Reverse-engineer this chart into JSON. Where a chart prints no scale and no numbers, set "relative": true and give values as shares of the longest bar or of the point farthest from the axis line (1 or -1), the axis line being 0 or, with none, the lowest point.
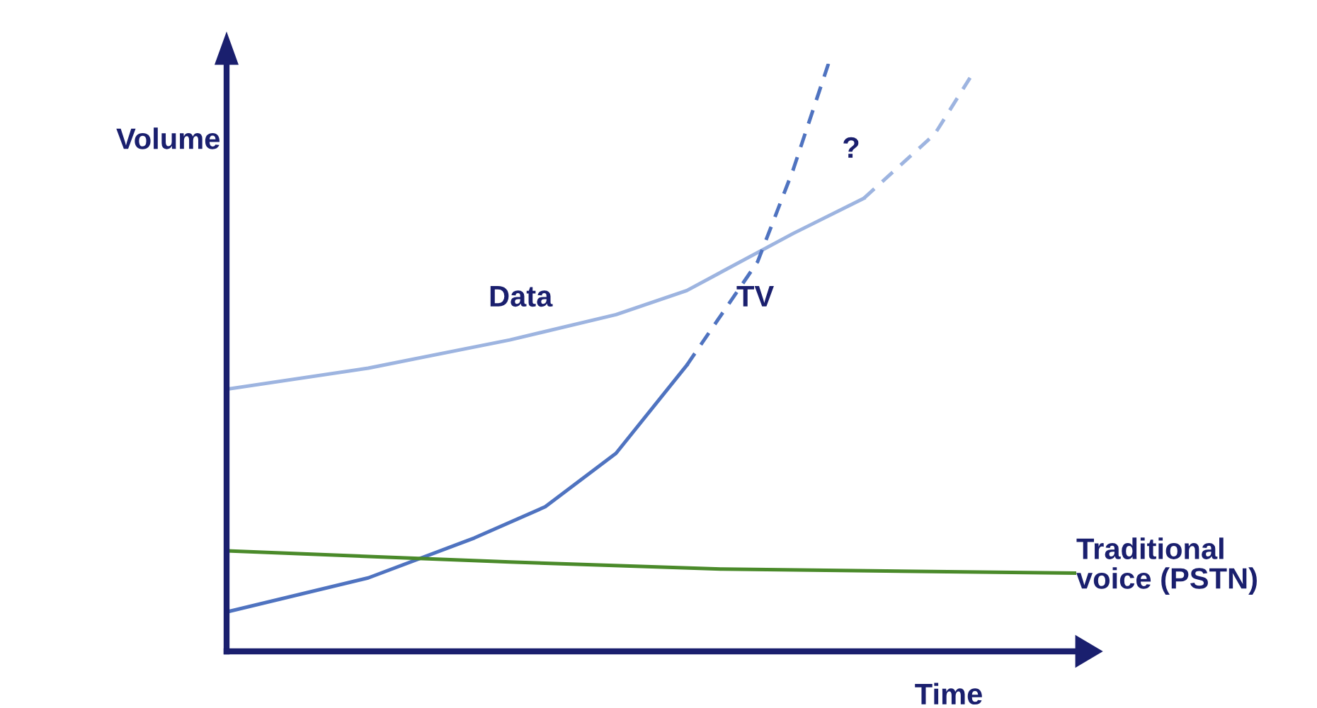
{
  "chart_data": {
    "type": "line",
    "relative": true,
    "xlabel": "Time",
    "ylabel": "Volume",
    "categories": [
      null,
      null,
      null,
      null,
      null,
      null,
      null,
      null,
      null,
      null,
      null,
      null,
      null,
      null,
      null,
      null,
      null,
      null,
      null,
      null,
      null,
      null,
      null,
      null,
      null
    ],
    "series": [
      {
        "name": "Data",
        "color": "#9db4e0",
        "line_style": "solid",
        "values": [
          0.446,
          null,
          null,
          null,
          0.482,
          null,
          null,
          null,
          0.53,
          null,
          null,
          0.573,
          null,
          0.614,
          null,
          null,
          0.711,
          null,
          0.771,
          null,
          null,
          null,
          null,
          null,
          null
        ]
      },
      {
        "color": "#9db4e0",
        "line_style": "dashed",
        "values": [
          null,
          null,
          null,
          null,
          null,
          null,
          null,
          null,
          null,
          null,
          null,
          null,
          null,
          null,
          null,
          null,
          null,
          null,
          0.771,
          null,
          0.88,
          0.976,
          null,
          null,
          null
        ]
      },
      {
        "color": "#4f73c0",
        "line_style": "solid",
        "values": [
          0.067,
          null,
          null,
          null,
          0.125,
          null,
          null,
          0.193,
          null,
          0.246,
          null,
          0.337,
          null,
          0.487,
          null,
          null,
          null,
          null,
          null,
          null,
          null,
          null,
          null,
          null,
          null
        ]
      },
      {
        "name": "TV",
        "color": "#4f73c0",
        "line_style": "dashed",
        "values": [
          null,
          null,
          null,
          null,
          null,
          null,
          null,
          null,
          null,
          null,
          null,
          null,
          null,
          0.487,
          null,
          0.663,
          0.819,
          1.0,
          null,
          null,
          null,
          null,
          null,
          null,
          null
        ]
      },
      {
        "name": "Traditional voice (PSTN)",
        "color": "#4a8a2a",
        "line_style": "solid",
        "values": [
          0.171,
          null,
          null,
          null,
          null,
          null,
          null,
          null,
          0.152,
          null,
          null,
          null,
          null,
          null,
          0.14,
          null,
          null,
          null,
          null,
          null,
          null,
          null,
          null,
          null,
          0.133
        ]
      }
    ],
    "annotations": [
      "?"
    ]
  }
}
